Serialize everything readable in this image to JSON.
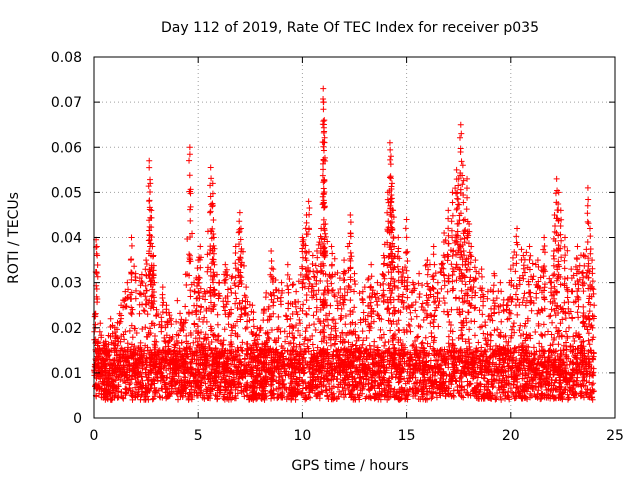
{
  "chart_data": {
    "type": "scatter",
    "title": "Day 112 of 2019, Rate Of TEC Index for receiver p035",
    "xlabel": "GPS time / hours",
    "ylabel": "ROTI / TECUs",
    "xlim": [
      0,
      25
    ],
    "ylim": [
      0,
      0.08
    ],
    "grid": true,
    "marker": "plus",
    "series_color": "#ff0000",
    "x_ticks": [
      0,
      5,
      10,
      15,
      20,
      25
    ],
    "x_tick_labels": [
      "0",
      "5",
      "10",
      "15",
      "20",
      "25"
    ],
    "y_ticks": [
      0,
      0.01,
      0.02,
      0.03,
      0.04,
      0.05,
      0.06,
      0.07,
      0.08
    ],
    "y_tick_labels": [
      "0",
      "0.01",
      "0.02",
      "0.03",
      "0.04",
      "0.05",
      "0.06",
      "0.07",
      "0.08"
    ],
    "series": [
      {
        "name": "ROTI p035",
        "x": [
          0.05,
          0.1,
          0.15,
          0.2,
          0.3,
          0.5,
          0.8,
          1.0,
          1.3,
          1.5,
          1.6,
          1.8,
          2.0,
          2.2,
          2.5,
          2.65,
          2.7,
          2.75,
          2.8,
          2.85,
          2.9,
          3.0,
          3.3,
          3.7,
          4.0,
          4.3,
          4.6,
          4.8,
          5.0,
          5.1,
          5.3,
          5.6,
          5.7,
          5.75,
          6.0,
          6.3,
          6.6,
          6.8,
          7.0,
          7.05,
          7.3,
          7.6,
          8.0,
          8.5,
          8.6,
          9.0,
          9.3,
          9.7,
          10.0,
          10.2,
          10.3,
          10.5,
          10.7,
          10.9,
          11.0,
          11.02,
          11.05,
          11.1,
          11.4,
          11.8,
          12.0,
          12.3,
          12.5,
          12.9,
          13.3,
          13.6,
          13.9,
          14.1,
          14.2,
          14.25,
          14.3,
          14.35,
          14.4,
          14.6,
          14.8,
          15.0,
          15.3,
          15.6,
          16.0,
          16.3,
          16.5,
          16.8,
          17.0,
          17.2,
          17.4,
          17.5,
          17.6,
          17.7,
          17.8,
          17.9,
          18.0,
          18.1,
          18.3,
          18.6,
          18.9,
          19.2,
          19.5,
          19.8,
          20.0,
          20.3,
          20.6,
          20.9,
          21.3,
          21.6,
          21.9,
          22.1,
          22.2,
          22.3,
          22.4,
          22.6,
          22.9,
          23.2,
          23.5,
          23.7,
          23.8,
          23.9,
          24.0
        ],
        "y": [
          0.023,
          0.0395,
          0.036,
          0.017,
          0.021,
          0.016,
          0.022,
          0.02,
          0.025,
          0.028,
          0.03,
          0.04,
          0.032,
          0.031,
          0.035,
          0.057,
          0.052,
          0.046,
          0.038,
          0.036,
          0.03,
          0.024,
          0.029,
          0.022,
          0.026,
          0.021,
          0.06,
          0.03,
          0.035,
          0.038,
          0.028,
          0.0555,
          0.052,
          0.04,
          0.03,
          0.034,
          0.031,
          0.038,
          0.0455,
          0.042,
          0.029,
          0.025,
          0.02,
          0.037,
          0.033,
          0.03,
          0.034,
          0.028,
          0.04,
          0.045,
          0.048,
          0.036,
          0.037,
          0.042,
          0.073,
          0.07,
          0.066,
          0.043,
          0.038,
          0.031,
          0.035,
          0.045,
          0.032,
          0.028,
          0.034,
          0.03,
          0.036,
          0.05,
          0.061,
          0.058,
          0.052,
          0.046,
          0.038,
          0.04,
          0.033,
          0.044,
          0.03,
          0.032,
          0.035,
          0.038,
          0.03,
          0.041,
          0.046,
          0.05,
          0.055,
          0.053,
          0.065,
          0.056,
          0.044,
          0.053,
          0.043,
          0.038,
          0.035,
          0.033,
          0.028,
          0.032,
          0.03,
          0.025,
          0.033,
          0.042,
          0.036,
          0.038,
          0.035,
          0.04,
          0.03,
          0.045,
          0.053,
          0.05,
          0.046,
          0.04,
          0.033,
          0.038,
          0.036,
          0.051,
          0.042,
          0.035,
          0.025
        ],
        "note": "dense band of points between about 0.004 and 0.015 across the full 0–24 h range with bursts up to the peaks listed"
      }
    ]
  }
}
